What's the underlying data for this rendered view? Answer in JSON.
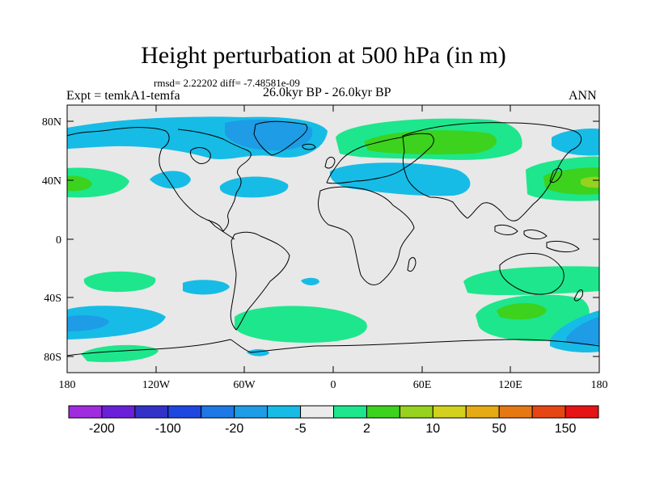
{
  "title": "Height perturbation at 500 hPa (in m)",
  "stats": "rmsd= 2.22202 diff= -7.48581e-09",
  "experiment": "Expt = temkA1-temfa",
  "period": "26.0kyr BP - 26.0kyr BP",
  "season": "ANN",
  "lat_ticks": [
    "80N",
    "40N",
    "0",
    "40S",
    "80S"
  ],
  "lon_ticks": [
    "180",
    "120W",
    "60W",
    "0",
    "60E",
    "120E",
    "180"
  ],
  "colorbar": {
    "colors": [
      "#a02ce0",
      "#6a20d8",
      "#3232c8",
      "#1e46e0",
      "#1e78e6",
      "#1e9ce6",
      "#16bce6",
      "#ebebeb",
      "#1ee68c",
      "#3cd21e",
      "#96d21e",
      "#d2d21e",
      "#e6aa14",
      "#e67814",
      "#e64614",
      "#e61414"
    ],
    "labels": [
      "-200",
      "-100",
      "-20",
      "-5",
      "2",
      "10",
      "50",
      "150"
    ]
  },
  "map_colors": {
    "land_fill": "#e8e8e8",
    "coast": "#000000",
    "neg_mid": "#1e9ce6",
    "neg_weak": "#16bce6",
    "pos_weak": "#1ee68c",
    "pos_mid": "#3cd21e",
    "pos_strong": "#96d21e"
  }
}
